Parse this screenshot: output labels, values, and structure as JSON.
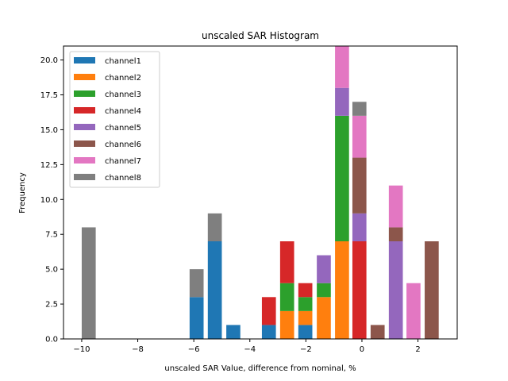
{
  "chart_data": {
    "type": "bar",
    "stacked": true,
    "title": "unscaled SAR Histogram",
    "xlabel": "unscaled SAR Value, difference from nominal, %",
    "ylabel": "Frequency",
    "xlim": [
      -10.65,
      3.4
    ],
    "ylim": [
      0,
      21
    ],
    "xticks": [
      -10,
      -8,
      -6,
      -4,
      -2,
      0,
      2
    ],
    "xtick_labels": [
      "−10",
      "−8",
      "−6",
      "−4",
      "−2",
      "0",
      "2"
    ],
    "yticks": [
      0,
      2.5,
      5,
      7.5,
      10,
      12.5,
      15,
      17.5,
      20
    ],
    "ytick_labels": [
      "0.0",
      "2.5",
      "5.0",
      "7.5",
      "10.0",
      "12.5",
      "15.0",
      "17.5",
      "20.0"
    ],
    "grid": false,
    "legend_position": "top-left",
    "bar_width": 0.5,
    "bins": [
      -10.0,
      -6.15,
      -5.5,
      -4.84,
      -3.57,
      -2.92,
      -2.27,
      -1.61,
      -0.96,
      -0.34,
      0.31,
      0.96,
      1.59,
      2.24
    ],
    "series": [
      {
        "name": "channel1",
        "color": "#1f77b4",
        "values": [
          0,
          3,
          7,
          1,
          1,
          0,
          1,
          0,
          0,
          0,
          0,
          0,
          0,
          0
        ]
      },
      {
        "name": "channel2",
        "color": "#ff7f0e",
        "values": [
          0,
          0,
          0,
          0,
          0,
          2,
          1,
          3,
          7,
          0,
          0,
          0,
          0,
          0
        ]
      },
      {
        "name": "channel3",
        "color": "#2ca02c",
        "values": [
          0,
          0,
          0,
          0,
          0,
          2,
          1,
          1,
          9,
          0,
          0,
          0,
          0,
          0
        ]
      },
      {
        "name": "channel4",
        "color": "#d62728",
        "values": [
          0,
          0,
          0,
          0,
          2,
          3,
          1,
          0,
          0,
          7,
          0,
          0,
          0,
          0
        ]
      },
      {
        "name": "channel5",
        "color": "#9467bd",
        "values": [
          0,
          0,
          0,
          0,
          0,
          0,
          0,
          2,
          2,
          2,
          0,
          7,
          0,
          0
        ]
      },
      {
        "name": "channel6",
        "color": "#8c564b",
        "values": [
          0,
          0,
          0,
          0,
          0,
          0,
          0,
          0,
          0,
          4,
          1,
          1,
          0,
          7
        ]
      },
      {
        "name": "channel7",
        "color": "#e377c2",
        "values": [
          0,
          0,
          0,
          0,
          0,
          0,
          0,
          0,
          3,
          3,
          0,
          3,
          4,
          0
        ]
      },
      {
        "name": "channel8",
        "color": "#7f7f7f",
        "values": [
          8,
          2,
          2,
          0,
          0,
          0,
          0,
          0,
          0,
          1,
          0,
          0,
          0,
          0
        ]
      }
    ]
  }
}
